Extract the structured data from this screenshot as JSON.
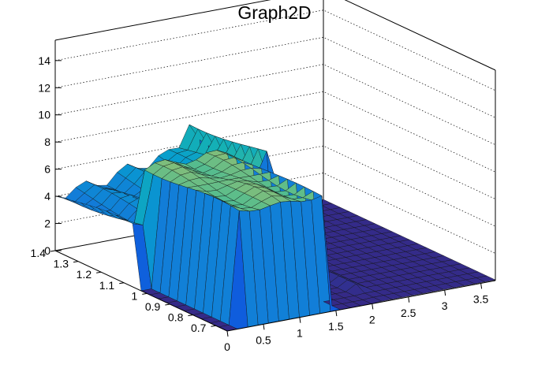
{
  "chart_data": {
    "type": "surface",
    "title": "Graph2D",
    "xlabel": "",
    "ylabel": "",
    "zlabel": "",
    "xlim": [
      0,
      3.7
    ],
    "ylim": [
      0.65,
      1.4
    ],
    "zlim": [
      0,
      15.5
    ],
    "x_ticks": [
      "0",
      "0.5",
      "1",
      "1.5",
      "2",
      "2.5",
      "3",
      "3.5"
    ],
    "y_ticks": [
      "0.7",
      "0.8",
      "0.9",
      "1",
      "1.1",
      "1.2",
      "1.3",
      "1.4"
    ],
    "z_ticks": [
      "0",
      "2",
      "4",
      "6",
      "8",
      "10",
      "12",
      "14"
    ],
    "grid": true,
    "colormap": "parula",
    "surface_x_range": [
      0,
      3.7
    ],
    "surface_y_range": [
      0.65,
      1.4
    ],
    "features": {
      "far_plateau_height": 4.2,
      "main_block": {
        "x_range": [
          0.2,
          1.55
        ],
        "y_range": [
          0.68,
          1.1
        ],
        "height": 8.2
      },
      "peak": {
        "x": 1.85,
        "height": 9.4
      },
      "floor_region": {
        "x_range": [
          2.0,
          3.7
        ],
        "height": 0
      }
    }
  },
  "colors": {
    "low": "#352a87",
    "mid": "#14b5ae",
    "high": "#f9fb0e",
    "frame": "#000000"
  }
}
